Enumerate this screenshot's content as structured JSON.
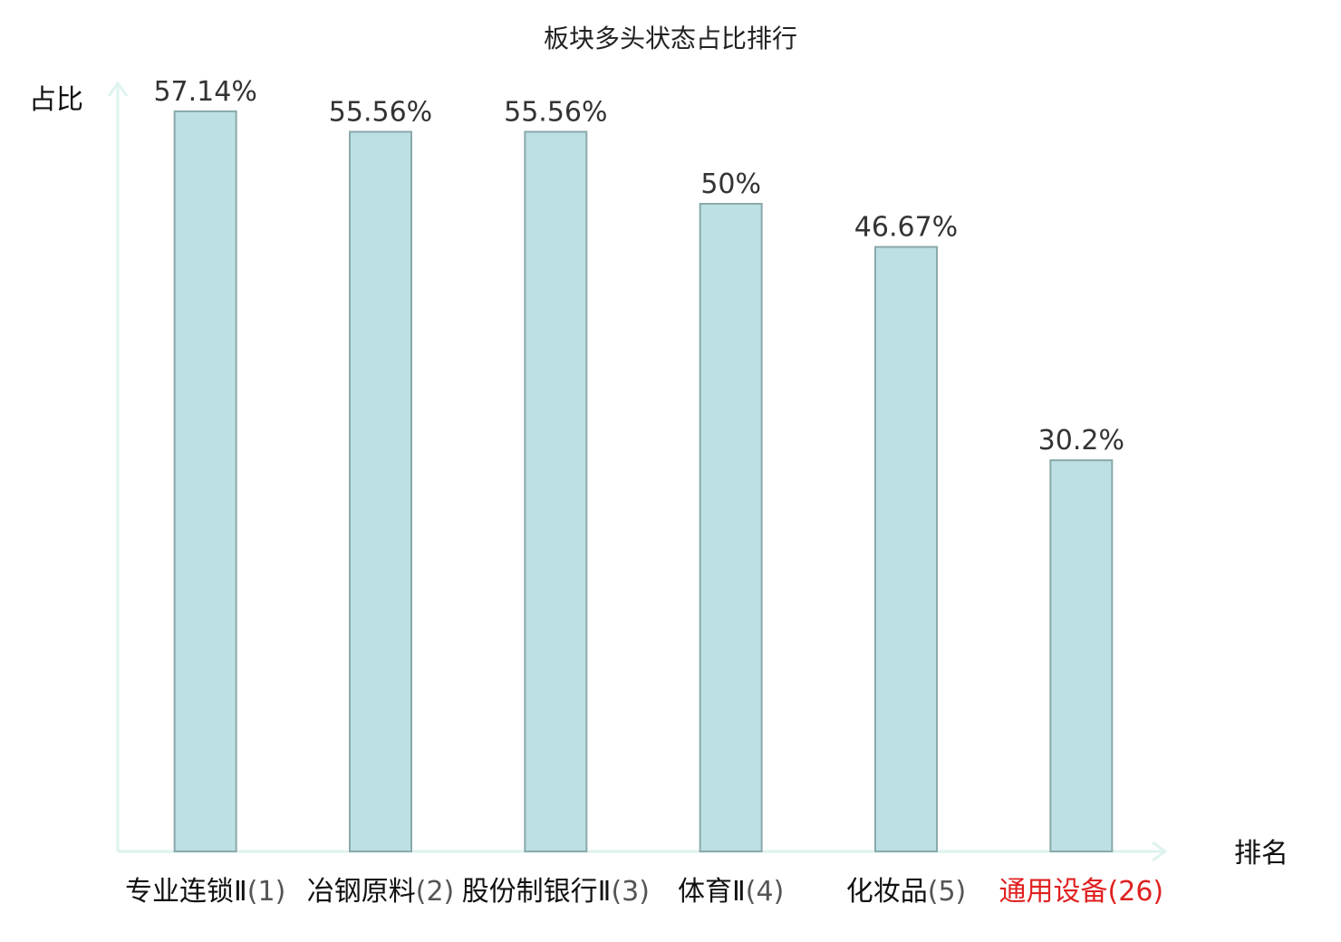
{
  "chart_data": {
    "type": "bar",
    "title": "板块多头状态占比排行",
    "ylabel": "占比",
    "xlabel": "排名",
    "ylim": [
      0,
      60
    ],
    "grid": false,
    "bar_color": "#bce0e3",
    "bar_border_color": "#8aa9ab",
    "axis_color": "#def3ef",
    "highlight_color": "#e02020",
    "categories": [
      {
        "name": "专业连锁Ⅱ",
        "rank": "(1)",
        "value": 57.14,
        "label": "57.14%",
        "highlight": false
      },
      {
        "name": "冶钢原料",
        "rank": "(2)",
        "value": 55.56,
        "label": "55.56%",
        "highlight": false
      },
      {
        "name": "股份制银行Ⅱ",
        "rank": "(3)",
        "value": 55.56,
        "label": "55.56%",
        "highlight": false
      },
      {
        "name": "体育Ⅱ",
        "rank": "(4)",
        "value": 50,
        "label": "50%",
        "highlight": false
      },
      {
        "name": "化妆品",
        "rank": "(5)",
        "value": 46.67,
        "label": "46.67%",
        "highlight": false
      },
      {
        "name": "通用设备",
        "rank": "(26)",
        "value": 30.2,
        "label": "30.2%",
        "highlight": true
      }
    ]
  }
}
